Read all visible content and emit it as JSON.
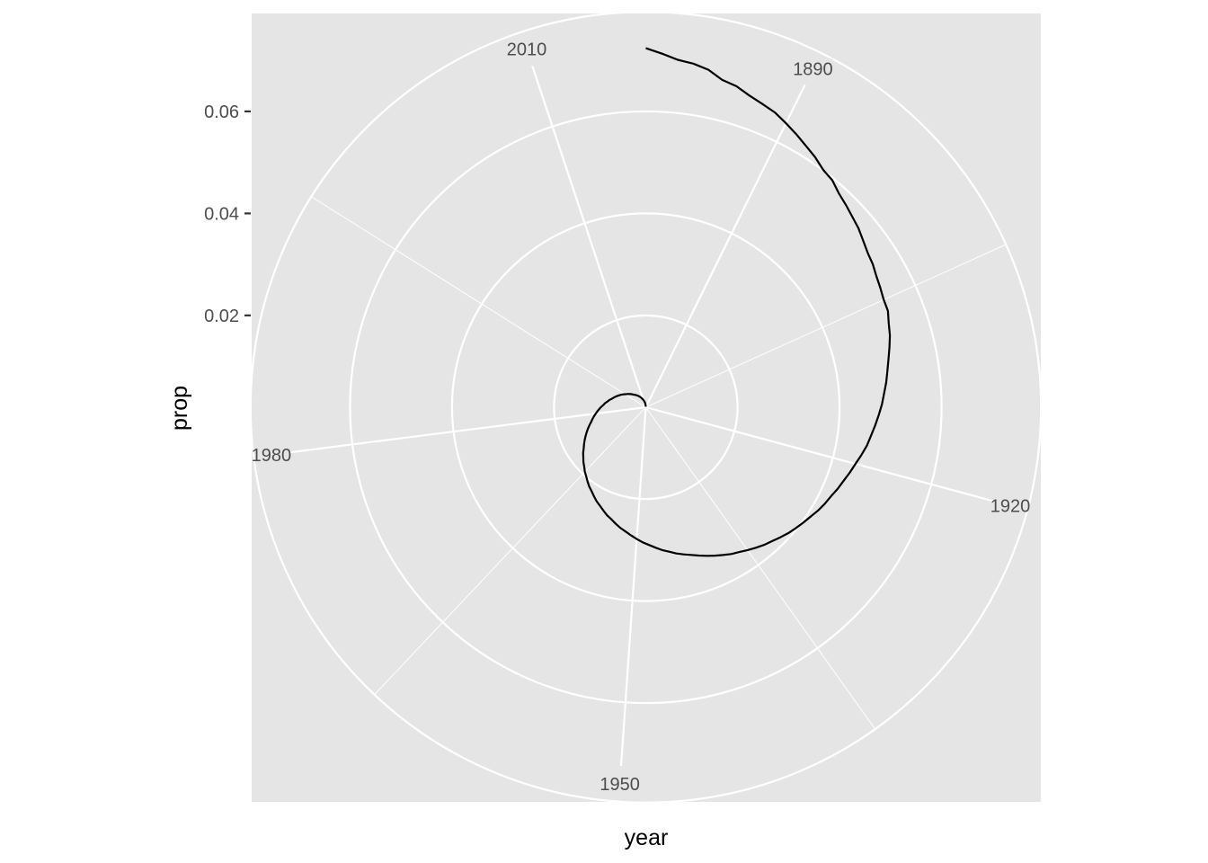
{
  "chart_data": {
    "type": "line",
    "coord": "polar",
    "xlabel": "year",
    "ylabel": "prop",
    "theta_ticks": [
      "1890",
      "1920",
      "1950",
      "1980",
      "2010"
    ],
    "theta_tick_values": [
      1890,
      1920,
      1950,
      1980,
      2010
    ],
    "r_ticks": [
      "0.02",
      "0.04",
      "0.06"
    ],
    "r_tick_values": [
      0.02,
      0.04,
      0.06
    ],
    "xlim": [
      1880,
      2017
    ],
    "ylim": [
      0.002,
      0.0725
    ],
    "grid": true,
    "series": [
      {
        "x": [
          1880,
          1881,
          1882,
          1883,
          1884,
          1885,
          1886,
          1887,
          1888,
          1889,
          1890,
          1891,
          1892,
          1893,
          1894,
          1895,
          1896,
          1897,
          1898,
          1899,
          1900,
          1901,
          1902,
          1903,
          1904,
          1905,
          1906,
          1907,
          1908,
          1909,
          1910,
          1911,
          1912,
          1913,
          1914,
          1915,
          1916,
          1917,
          1918,
          1919,
          1920,
          1921,
          1922,
          1923,
          1924,
          1925,
          1926,
          1927,
          1928,
          1929,
          1930,
          1931,
          1932,
          1933,
          1934,
          1935,
          1936,
          1937,
          1938,
          1939,
          1940,
          1941,
          1942,
          1943,
          1944,
          1945,
          1946,
          1947,
          1948,
          1949,
          1950,
          1951,
          1952,
          1953,
          1954,
          1955,
          1956,
          1957,
          1958,
          1959,
          1960,
          1961,
          1962,
          1963,
          1964,
          1965,
          1966,
          1967,
          1968,
          1969,
          1970,
          1971,
          1972,
          1973,
          1974,
          1975,
          1976,
          1977,
          1978,
          1979,
          1980,
          1981,
          1982,
          1983,
          1984,
          1985,
          1986,
          1987,
          1988,
          1989,
          1990,
          1991,
          1992,
          1993,
          1994,
          1995,
          1996,
          1997,
          1998,
          1999,
          2000,
          2001,
          2002,
          2003,
          2004,
          2005,
          2006,
          2007,
          2008,
          2009,
          2010,
          2011,
          2012,
          2013,
          2014,
          2015,
          2016,
          2017
        ],
        "y": [
          0.0724,
          0.0714,
          0.0704,
          0.07,
          0.0693,
          0.0679,
          0.0674,
          0.0664,
          0.0657,
          0.0651,
          0.0641,
          0.0631,
          0.0621,
          0.0612,
          0.0601,
          0.0596,
          0.0585,
          0.0578,
          0.0571,
          0.0565,
          0.0557,
          0.055,
          0.0546,
          0.054,
          0.0536,
          0.0532,
          0.0531,
          0.0524,
          0.0519,
          0.0512,
          0.0505,
          0.0499,
          0.0494,
          0.0488,
          0.0483,
          0.0477,
          0.0471,
          0.0465,
          0.046,
          0.0453,
          0.0446,
          0.044,
          0.0434,
          0.0429,
          0.0423,
          0.0419,
          0.0414,
          0.0408,
          0.0403,
          0.0398,
          0.0393,
          0.0387,
          0.0381,
          0.0376,
          0.037,
          0.0364,
          0.0358,
          0.0353,
          0.0347,
          0.0341,
          0.0335,
          0.0329,
          0.0323,
          0.0318,
          0.0313,
          0.0307,
          0.0302,
          0.0296,
          0.029,
          0.0285,
          0.0279,
          0.0273,
          0.0267,
          0.0262,
          0.0256,
          0.025,
          0.0245,
          0.0239,
          0.0233,
          0.0228,
          0.0222,
          0.0216,
          0.0211,
          0.0205,
          0.0199,
          0.0194,
          0.0188,
          0.0183,
          0.0177,
          0.0172,
          0.0166,
          0.0161,
          0.0156,
          0.0151,
          0.0146,
          0.0141,
          0.0136,
          0.0131,
          0.0127,
          0.0123,
          0.0119,
          0.0115,
          0.0111,
          0.0107,
          0.0103,
          0.01,
          0.0096,
          0.0093,
          0.0089,
          0.0086,
          0.0083,
          0.008,
          0.0077,
          0.0074,
          0.0071,
          0.0068,
          0.0065,
          0.0063,
          0.006,
          0.0058,
          0.0055,
          0.0053,
          0.0051,
          0.0049,
          0.0047,
          0.0045,
          0.0043,
          0.0041,
          0.0039,
          0.0037,
          0.0035,
          0.0033,
          0.0031,
          0.0029,
          0.0027,
          0.0025,
          0.0023,
          0.0021
        ]
      }
    ]
  }
}
